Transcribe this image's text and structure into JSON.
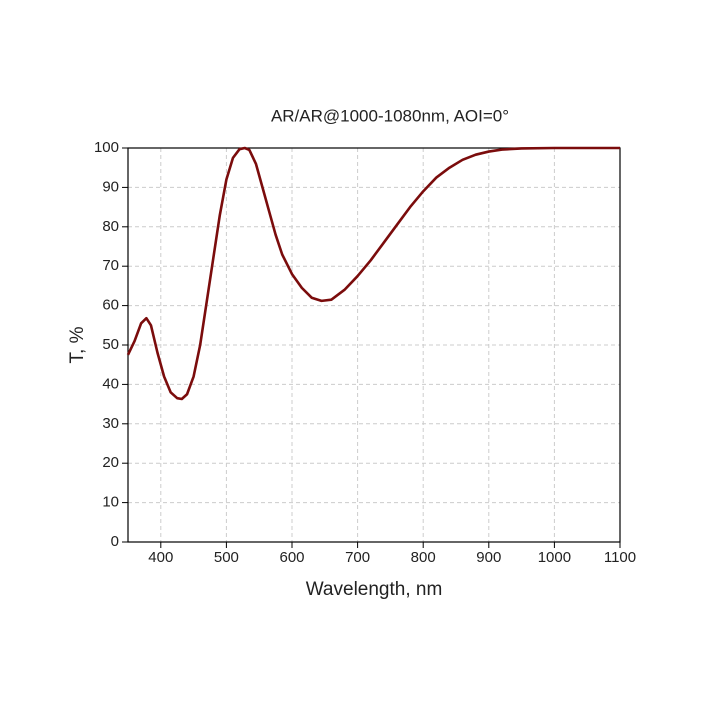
{
  "chart_data": {
    "type": "line",
    "title": "AR/AR@1000-1080nm, AOI=0°",
    "x_label": "Wavelength, nm",
    "y_label": "T, %",
    "x": [
      350,
      360,
      370,
      378,
      385,
      395,
      405,
      415,
      425,
      432,
      440,
      450,
      460,
      470,
      480,
      490,
      500,
      510,
      520,
      528,
      535,
      545,
      555,
      565,
      575,
      585,
      600,
      615,
      630,
      645,
      660,
      680,
      700,
      720,
      740,
      760,
      780,
      800,
      820,
      840,
      860,
      880,
      900,
      920,
      950,
      1000,
      1050,
      1100
    ],
    "series": [
      {
        "name": "T",
        "color": "#7b0c0c",
        "values": [
          47.5,
          51,
          55.5,
          56.8,
          55,
          48,
          42,
          38,
          36.5,
          36.3,
          37.5,
          42,
          50,
          61,
          72,
          83,
          92,
          97.5,
          99.7,
          100,
          99.5,
          96,
          90,
          84,
          78,
          73,
          68,
          64.5,
          62,
          61.2,
          61.5,
          64,
          67.5,
          71.5,
          76,
          80.5,
          85,
          89,
          92.5,
          95,
          97,
          98.3,
          99.1,
          99.6,
          99.9,
          100,
          100,
          100
        ]
      }
    ],
    "xlim": [
      350,
      1100
    ],
    "ylim": [
      0,
      100
    ],
    "xticks": [
      400,
      500,
      600,
      700,
      800,
      900,
      1000,
      1100
    ],
    "yticks": [
      0,
      10,
      20,
      30,
      40,
      50,
      60,
      70,
      80,
      90,
      100
    ],
    "grid": true
  }
}
